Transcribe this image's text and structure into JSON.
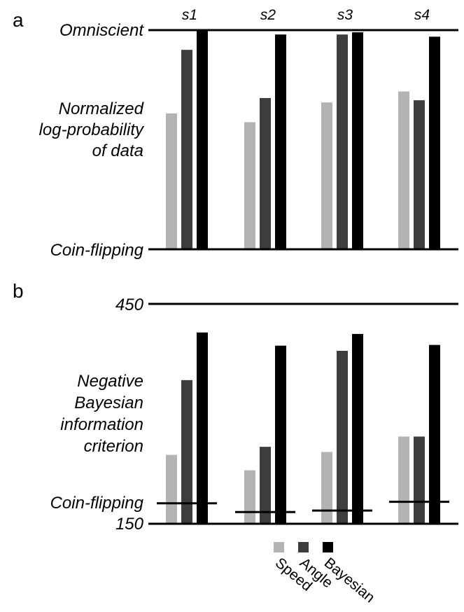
{
  "panel_labels": {
    "a": "a",
    "b": "b"
  },
  "chart_data": [
    {
      "type": "bar",
      "panel": "a",
      "categories": [
        "s1",
        "s2",
        "s3",
        "s4"
      ],
      "ylabel": "Normalized\nlog-probability\nof data",
      "ytick_labels": {
        "top": "Omniscient",
        "bottom": "Coin-flipping"
      },
      "ylim": [
        0,
        1
      ],
      "series": [
        {
          "name": "Speed",
          "color": "#b3b3b3",
          "values": [
            0.62,
            0.58,
            0.67,
            0.72
          ]
        },
        {
          "name": "Angle",
          "color": "#3d3d3d",
          "values": [
            0.91,
            0.69,
            0.98,
            0.68
          ]
        },
        {
          "name": "Bayesian",
          "color": "#000000",
          "values": [
            1.0,
            0.98,
            0.99,
            0.97
          ]
        }
      ]
    },
    {
      "type": "bar",
      "panel": "b",
      "categories": [
        "s1",
        "s2",
        "s3",
        "s4"
      ],
      "ylabel": "Negative\nBayesian\ninformation\ncriterion",
      "ylim": [
        150,
        450
      ],
      "yticks": [
        150,
        450
      ],
      "ytick_labels": {
        "top": "450",
        "bottom": "150"
      },
      "reference_label": "Coin-flipping",
      "reference_values": [
        178,
        166,
        168,
        180
      ],
      "series": [
        {
          "name": "Speed",
          "color": "#b3b3b3",
          "values": [
            244,
            223,
            248,
            269
          ]
        },
        {
          "name": "Angle",
          "color": "#3d3d3d",
          "values": [
            346,
            255,
            386,
            269
          ]
        },
        {
          "name": "Bayesian",
          "color": "#000000",
          "values": [
            411,
            393,
            409,
            394
          ]
        }
      ]
    }
  ],
  "legend": {
    "placement": "bottom",
    "items": [
      {
        "label": "Speed",
        "color": "#b3b3b3"
      },
      {
        "label": "Angle",
        "color": "#3d3d3d"
      },
      {
        "label": "Bayesian",
        "color": "#000000"
      }
    ]
  }
}
